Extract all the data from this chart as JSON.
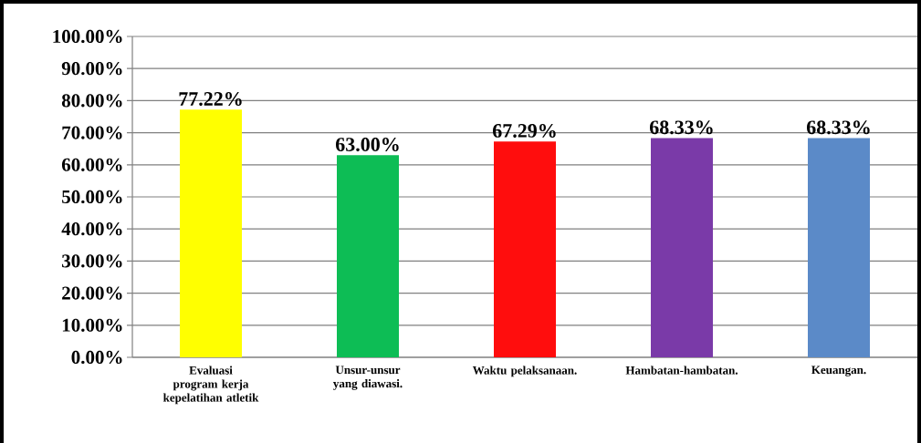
{
  "chart_data": {
    "type": "bar",
    "categories": [
      "Evaluasi program kerja kepelatihan atletik",
      "Unsur-unsur yang diawasi.",
      "Waktu pelaksanaan.",
      "Hambatan-hambatan.",
      "Keuangan."
    ],
    "values": [
      77.22,
      63.0,
      67.29,
      68.33,
      68.33
    ],
    "value_labels": [
      "77.22%",
      "63.00%",
      "67.29%",
      "68.33%",
      "68.33%"
    ],
    "colors": [
      "#ffff00",
      "#0dbd55",
      "#ff0d0d",
      "#7a3aa8",
      "#5b8ac8"
    ],
    "ylim": [
      0,
      100
    ],
    "yticks": [
      {
        "value": 0,
        "label": "0.00%"
      },
      {
        "value": 10,
        "label": "10.00%"
      },
      {
        "value": 20,
        "label": "20.00%"
      },
      {
        "value": 30,
        "label": "30.00%"
      },
      {
        "value": 40,
        "label": "40.00%"
      },
      {
        "value": 50,
        "label": "50.00%"
      },
      {
        "value": 60,
        "label": "60.00%"
      },
      {
        "value": 70,
        "label": "70.00%"
      },
      {
        "value": 80,
        "label": "80.00%"
      },
      {
        "value": 90,
        "label": "90.00%"
      },
      {
        "value": 100,
        "label": "100.00%"
      }
    ],
    "grid": "y"
  }
}
